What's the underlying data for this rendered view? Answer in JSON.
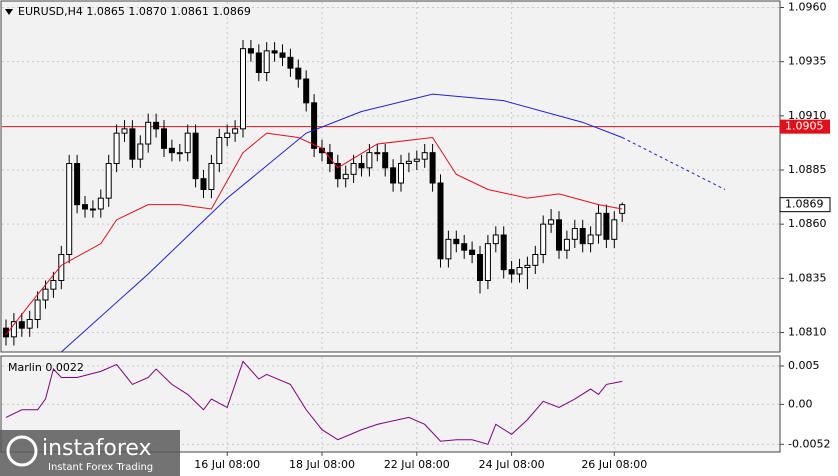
{
  "chart_data": [
    {
      "type": "candlestick",
      "title": "EURUSD,H4  1.0865 1.0870 1.0861 1.0869",
      "categories": [
        null,
        null,
        null,
        null,
        null,
        null,
        null,
        null,
        null,
        null,
        null,
        null,
        null,
        null,
        null,
        null,
        null,
        null,
        null,
        null,
        null,
        null,
        null,
        null,
        null,
        null,
        null,
        null,
        "16 Jul 08:00",
        null,
        null,
        null,
        null,
        null,
        null,
        null,
        null,
        null,
        null,
        null,
        "18 Jul 08:00",
        null,
        null,
        null,
        null,
        null,
        null,
        null,
        null,
        null,
        null,
        null,
        "22 Jul 08:00",
        null,
        null,
        null,
        null,
        null,
        null,
        null,
        null,
        null,
        null,
        null,
        "24 Jul 08:00",
        null,
        null,
        null,
        null,
        null,
        null,
        null,
        null,
        null,
        null,
        null,
        null,
        "26 Jul 08:00",
        null
      ],
      "open": [
        1.0812,
        1.0808,
        1.0815,
        1.0812,
        1.0816,
        1.0825,
        1.083,
        1.0834,
        1.0846,
        1.0888,
        1.0869,
        1.0867,
        1.0867,
        1.0872,
        1.0888,
        1.0902,
        1.0904,
        1.089,
        1.0897,
        1.0907,
        1.0904,
        1.0895,
        1.0893,
        1.0893,
        1.0902,
        1.0881,
        1.0876,
        1.0888,
        1.09,
        1.0902,
        1.0904,
        1.0941,
        1.0939,
        1.093,
        1.094,
        1.0939,
        1.0937,
        1.0932,
        1.0927,
        1.0916,
        1.0895,
        1.0893,
        1.0888,
        1.0881,
        1.0883,
        1.0888,
        1.0886,
        1.0893,
        1.0893,
        1.0886,
        1.0879,
        1.0888,
        1.0889,
        1.089,
        1.0893,
        1.0879,
        1.0844,
        1.0853,
        1.0851,
        1.0848,
        1.0846,
        1.0834,
        1.0851,
        1.0855,
        1.0839,
        1.0837,
        1.084,
        1.0841,
        1.0846,
        1.086,
        1.0862,
        1.0848,
        1.0853,
        1.0858,
        1.0851,
        1.0855,
        1.0865,
        1.0853,
        1.0865
      ],
      "high": [
        1.0816,
        1.0819,
        1.0819,
        1.082,
        1.0829,
        1.0834,
        1.0838,
        1.085,
        1.0892,
        1.0892,
        1.0873,
        1.0871,
        1.0876,
        1.0892,
        1.0906,
        1.0908,
        1.0908,
        1.0901,
        1.0911,
        1.0911,
        1.0908,
        1.0899,
        1.0897,
        1.0906,
        1.0906,
        1.0885,
        1.0892,
        1.0904,
        1.0906,
        1.0908,
        1.0945,
        1.0945,
        1.0943,
        1.0944,
        1.0944,
        1.0943,
        1.0941,
        1.0936,
        1.0931,
        1.092,
        1.0899,
        1.0897,
        1.0892,
        1.0887,
        1.0892,
        1.0892,
        1.0897,
        1.0897,
        1.0897,
        1.089,
        1.0892,
        1.0893,
        1.0894,
        1.0897,
        1.0897,
        1.0883,
        1.0857,
        1.0857,
        1.0855,
        1.0852,
        1.085,
        1.0855,
        1.0859,
        1.0859,
        1.0843,
        1.0844,
        1.0845,
        1.085,
        1.0864,
        1.0867,
        1.0866,
        1.0857,
        1.0862,
        1.0862,
        1.0859,
        1.0869,
        1.0869,
        1.0866,
        1.087
      ],
      "low": [
        1.0804,
        1.0804,
        1.0808,
        1.0808,
        1.0812,
        1.0821,
        1.0826,
        1.083,
        1.0842,
        1.0865,
        1.0863,
        1.0863,
        1.0863,
        1.0868,
        1.0884,
        1.0898,
        1.0886,
        1.0886,
        1.0893,
        1.09,
        1.0891,
        1.0889,
        1.0889,
        1.0889,
        1.0877,
        1.0872,
        1.0872,
        1.0884,
        1.0896,
        1.0898,
        1.09,
        1.0935,
        1.0926,
        1.0926,
        1.0935,
        1.0933,
        1.0928,
        1.0923,
        1.0912,
        1.0891,
        1.0889,
        1.0884,
        1.0877,
        1.0877,
        1.0879,
        1.0882,
        1.0882,
        1.0889,
        1.0882,
        1.0875,
        1.0875,
        1.0884,
        1.0885,
        1.0886,
        1.0875,
        1.084,
        1.084,
        1.0847,
        1.0844,
        1.0842,
        1.0828,
        1.083,
        1.0847,
        1.0835,
        1.0833,
        1.0833,
        1.083,
        1.0837,
        1.0842,
        1.0856,
        1.0844,
        1.0844,
        1.0849,
        1.0847,
        1.0847,
        1.0851,
        1.0849,
        1.0849,
        1.0861
      ],
      "close": [
        1.0808,
        1.0815,
        1.0812,
        1.0816,
        1.0825,
        1.083,
        1.0834,
        1.0846,
        1.0888,
        1.0869,
        1.0867,
        1.0867,
        1.0872,
        1.0888,
        1.0902,
        1.0904,
        1.089,
        1.0897,
        1.0907,
        1.0904,
        1.0895,
        1.0893,
        1.0893,
        1.0902,
        1.0881,
        1.0876,
        1.0888,
        1.09,
        1.0902,
        1.0904,
        1.0941,
        1.0939,
        1.093,
        1.094,
        1.0939,
        1.0937,
        1.0932,
        1.0927,
        1.0916,
        1.0895,
        1.0893,
        1.0888,
        1.0881,
        1.0883,
        1.0888,
        1.0886,
        1.0893,
        1.0893,
        1.0886,
        1.0879,
        1.0888,
        1.0889,
        1.089,
        1.0893,
        1.0879,
        1.0844,
        1.0853,
        1.0851,
        1.0848,
        1.0846,
        1.0834,
        1.0851,
        1.0855,
        1.0839,
        1.0837,
        1.084,
        1.0841,
        1.0846,
        1.086,
        1.0862,
        1.0848,
        1.0853,
        1.0858,
        1.0851,
        1.0855,
        1.0865,
        1.0853,
        1.0862,
        1.0869
      ],
      "series": [
        {
          "color": "#e0101a",
          "x": [
            0,
            3,
            7,
            12,
            14,
            18,
            22,
            26,
            30,
            33,
            37,
            40,
            42,
            47,
            54,
            57,
            61,
            66,
            70,
            75,
            78
          ],
          "values": [
            1.0809,
            1.0823,
            1.0841,
            1.0851,
            1.0862,
            1.0869,
            1.0869,
            1.0867,
            1.0893,
            1.0902,
            1.09,
            1.0895,
            1.0886,
            1.0897,
            1.09,
            1.0883,
            1.0876,
            1.0872,
            1.0874,
            1.0869,
            1.0867
          ]
        },
        {
          "color": "#2020d0",
          "x": [
            7,
            18,
            28,
            38,
            45,
            54,
            63,
            73,
            78
          ],
          "values": [
            1.0801,
            1.0837,
            1.0872,
            1.0902,
            1.0912,
            1.092,
            1.0917,
            1.0907,
            1.09
          ]
        },
        {
          "color": "#2020d0",
          "dashed": true,
          "x": [
            78,
            91
          ],
          "values": [
            1.09,
            1.0876
          ]
        }
      ],
      "hline": {
        "value": 1.0905,
        "color": "#e0101a"
      },
      "ylim": [
        1.0801,
        1.0963
      ],
      "yticks": [
        {
          "value": 1.096,
          "label": "1.0960"
        },
        1.0935,
        {
          "value": 1.091,
          "label": "1.0910"
        },
        1.0885,
        {
          "value": 1.086,
          "label": "1.0860"
        },
        1.0835,
        {
          "value": 1.081,
          "label": "1.0810"
        }
      ],
      "grid": true
    },
    {
      "type": "line",
      "title": "Marlin 0.0022",
      "color": "#800080",
      "x": [
        0,
        2,
        4,
        5,
        6,
        7,
        9,
        12,
        14,
        16,
        18,
        19,
        21,
        23,
        25,
        26,
        28,
        30,
        32,
        33,
        36,
        38,
        40,
        42,
        45,
        47,
        51,
        53,
        55,
        57,
        59,
        61,
        62,
        64,
        66,
        68,
        70,
        72,
        74,
        75,
        76,
        78
      ],
      "values": [
        -0.0017,
        -0.0007,
        -0.0007,
        0.0007,
        0.0046,
        0.0035,
        0.0035,
        0.0043,
        0.0052,
        0.0026,
        0.0035,
        0.0046,
        0.0026,
        0.0013,
        -0.0007,
        0.0007,
        -0.0004,
        0.0056,
        0.0033,
        0.0039,
        0.0026,
        -0.0007,
        -0.0033,
        -0.0046,
        -0.0033,
        -0.0026,
        -0.0017,
        -0.0026,
        -0.0048,
        -0.0046,
        -0.0046,
        -0.0052,
        -0.0026,
        -0.0039,
        -0.002,
        0.0004,
        -0.0004,
        0.0007,
        0.002,
        0.0013,
        0.0026,
        0.003
      ],
      "ylim": [
        -0.0062,
        0.0063
      ],
      "yticks": [
        0.005,
        {
          "value": 0,
          "label": "0.00"
        },
        -0.0052
      ]
    }
  ],
  "watermark": {
    "brand": "instaforex",
    "tagline": "Instant Forex Trading"
  }
}
